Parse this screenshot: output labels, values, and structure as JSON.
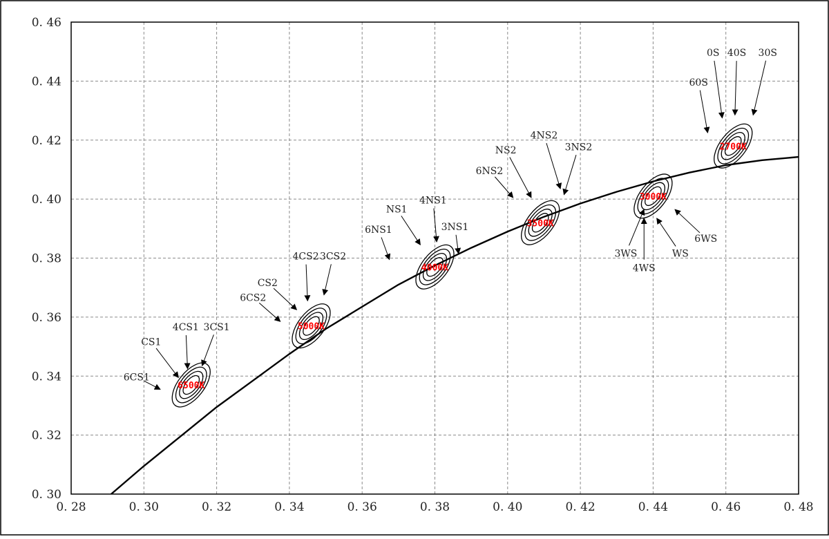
{
  "chart_data": {
    "type": "scatter",
    "title": "",
    "xlabel": "",
    "ylabel": "",
    "xlim": [
      0.28,
      0.48
    ],
    "ylim": [
      0.3,
      0.46
    ],
    "grid": true,
    "x_ticks": [
      "0.28",
      "0.30",
      "0.32",
      "0.34",
      "0.36",
      "0.38",
      "0.40",
      "0.42",
      "0.44",
      "0.46",
      "0.48"
    ],
    "y_ticks": [
      "0.30",
      "0.32",
      "0.34",
      "0.36",
      "0.38",
      "0.40",
      "0.42",
      "0.44",
      "0.46"
    ],
    "planckian_locus": {
      "x": [
        0.291,
        0.3,
        0.31,
        0.32,
        0.33,
        0.34,
        0.35,
        0.36,
        0.37,
        0.38,
        0.39,
        0.4,
        0.41,
        0.42,
        0.43,
        0.44,
        0.45,
        0.46,
        0.47,
        0.48
      ],
      "y": [
        0.3,
        0.3095,
        0.3195,
        0.3295,
        0.3385,
        0.3475,
        0.356,
        0.3635,
        0.371,
        0.3775,
        0.3835,
        0.389,
        0.394,
        0.3985,
        0.4025,
        0.406,
        0.409,
        0.4115,
        0.4132,
        0.4143
      ]
    },
    "ellipse_groups": [
      {
        "cct": "6500K",
        "center": [
          0.313,
          0.337
        ],
        "step_labels": [
          {
            "text": "CS1",
            "label": [
              0.302,
              0.3505
            ],
            "arrow_to": [
              0.3095,
              0.3395
            ]
          },
          {
            "text": "4CS1",
            "label": [
              0.3115,
              0.3555
            ],
            "arrow_to": [
              0.312,
              0.3425
            ]
          },
          {
            "text": "3CS1",
            "label": [
              0.32,
              0.3555
            ],
            "arrow_to": [
              0.316,
              0.3435
            ]
          },
          {
            "text": "6CS1",
            "label": [
              0.298,
              0.3385
            ],
            "arrow_to": [
              0.3045,
              0.3355
            ]
          }
        ]
      },
      {
        "cct": "5000K",
        "center": [
          0.346,
          0.357
        ],
        "step_labels": [
          {
            "text": "CS2",
            "label": [
              0.334,
              0.3705
            ],
            "arrow_to": [
              0.342,
              0.3625
            ]
          },
          {
            "text": "4CS2",
            "label": [
              0.3445,
              0.3795
            ],
            "arrow_to": [
              0.345,
              0.3655
            ]
          },
          {
            "text": "3CS2",
            "label": [
              0.352,
              0.3795
            ],
            "arrow_to": [
              0.3495,
              0.3675
            ]
          },
          {
            "text": "6CS2",
            "label": [
              0.33,
              0.3655
            ],
            "arrow_to": [
              0.3375,
              0.3585
            ]
          }
        ]
      },
      {
        "cct": "4000K",
        "center": [
          0.38,
          0.377
        ],
        "step_labels": [
          {
            "text": "NS1",
            "label": [
              0.3695,
              0.3955
            ],
            "arrow_to": [
              0.376,
              0.3845
            ]
          },
          {
            "text": "4NS1",
            "label": [
              0.3795,
              0.3985
            ],
            "arrow_to": [
              0.3805,
              0.3855
            ]
          },
          {
            "text": "3NS1",
            "label": [
              0.3855,
              0.3895
            ],
            "arrow_to": [
              0.3865,
              0.3815
            ]
          },
          {
            "text": "6NS1",
            "label": [
              0.3645,
              0.3885
            ],
            "arrow_to": [
              0.3675,
              0.3795
            ]
          }
        ]
      },
      {
        "cct": "3500K",
        "center": [
          0.409,
          0.392
        ],
        "step_labels": [
          {
            "text": "NS2",
            "label": [
              0.3995,
              0.4155
            ],
            "arrow_to": [
              0.4065,
              0.4005
            ]
          },
          {
            "text": "4NS2",
            "label": [
              0.41,
              0.4205
            ],
            "arrow_to": [
              0.4145,
              0.4035
            ]
          },
          {
            "text": "3NS2",
            "label": [
              0.4195,
              0.4165
            ],
            "arrow_to": [
              0.4155,
              0.4015
            ]
          },
          {
            "text": "6NS2",
            "label": [
              0.395,
              0.4085
            ],
            "arrow_to": [
              0.4015,
              0.4005
            ]
          }
        ]
      },
      {
        "cct": "3000K",
        "center": [
          0.44,
          0.401
        ],
        "step_labels": [
          {
            "text": "3WS",
            "label": [
              0.4325,
              0.3805
            ],
            "arrow_to": [
              0.4375,
              0.3965
            ]
          },
          {
            "text": "4WS",
            "label": [
              0.4375,
              0.3755
            ],
            "arrow_to": [
              0.4375,
              0.3935
            ]
          },
          {
            "text": "WS",
            "label": [
              0.4475,
              0.3805
            ],
            "arrow_to": [
              0.441,
              0.3935
            ]
          },
          {
            "text": "6WS",
            "label": [
              0.4545,
              0.3855
            ],
            "arrow_to": [
              0.446,
              0.3965
            ]
          }
        ]
      },
      {
        "cct": "2700K",
        "center": [
          0.462,
          0.418
        ],
        "step_labels": [
          {
            "text": "0S",
            "label": [
              0.4565,
              0.4485
            ],
            "arrow_to": [
              0.459,
              0.4275
            ]
          },
          {
            "text": "40S",
            "label": [
              0.463,
              0.4485
            ],
            "arrow_to": [
              0.4625,
              0.4285
            ]
          },
          {
            "text": "30S",
            "label": [
              0.4715,
              0.4485
            ],
            "arrow_to": [
              0.4675,
              0.4285
            ]
          },
          {
            "text": "60S",
            "label": [
              0.4525,
              0.4385
            ],
            "arrow_to": [
              0.455,
              0.4225
            ]
          }
        ]
      }
    ]
  }
}
